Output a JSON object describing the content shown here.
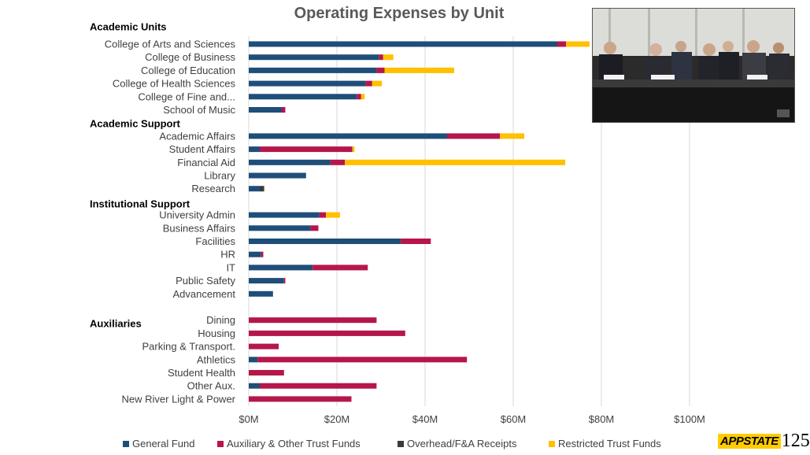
{
  "chart_data": {
    "type": "bar",
    "orientation": "horizontal",
    "stacked": true,
    "title": "Operating Expenses by Unit",
    "xlim": [
      0,
      100
    ],
    "x_ticks": [
      "$0M",
      "$20M",
      "$40M",
      "$60M",
      "$80M",
      "$100M"
    ],
    "x_tick_values": [
      0,
      20,
      40,
      60,
      80,
      100
    ],
    "grid": true,
    "legend_position": "bottom",
    "groups": [
      {
        "label": "Academic Units",
        "categories": [
          "College of Arts and Sciences",
          "College of Business",
          "College of Education",
          "College of Health Sciences",
          "College of Fine and...",
          "School of Music"
        ]
      },
      {
        "label": "Academic Support",
        "categories": [
          "Academic Affairs",
          "Student Affairs",
          "Financial Aid",
          "Library",
          "Research"
        ]
      },
      {
        "label": "Institutional Support",
        "categories": [
          "University Admin",
          "Business Affairs",
          "Facilities",
          "HR",
          "IT",
          "Public Safety",
          "Advancement"
        ]
      },
      {
        "label": "Auxiliaries",
        "categories": [
          "Dining",
          "Housing",
          "Parking & Transport.",
          "Athletics",
          "Student Health",
          "Other Aux.",
          "New River Light & Power"
        ]
      }
    ],
    "categories": [
      "College of Arts and Sciences",
      "College of Business",
      "College of Education",
      "College of Health Sciences",
      "College of Fine and...",
      "School of Music",
      "Academic Affairs",
      "Student Affairs",
      "Financial Aid",
      "Library",
      "Research",
      "University Admin",
      "Business Affairs",
      "Facilities",
      "HR",
      "IT",
      "Public Safety",
      "Advancement",
      "Dining",
      "Housing",
      "Parking & Transport.",
      "Athletics",
      "Student Health",
      "Other Aux.",
      "New River Light & Power"
    ],
    "series": [
      {
        "name": "General Fund",
        "color": "#1f4e79",
        "values": [
          70,
          29.5,
          29,
          26.5,
          24.5,
          7.5,
          45,
          2.5,
          18.5,
          13,
          2.5,
          16,
          14,
          34.5,
          2.8,
          14.5,
          8,
          5.5,
          0,
          0,
          0,
          2,
          0,
          2.5,
          0
        ]
      },
      {
        "name": "Auxiliary & Other Trust Funds",
        "color": "#b5174b",
        "values": [
          2,
          1,
          1.8,
          1.5,
          1,
          0.8,
          12,
          21,
          3.3,
          0,
          0,
          1.5,
          1.8,
          6.8,
          0.5,
          12.5,
          0.3,
          0,
          29,
          35.5,
          6.8,
          47.5,
          8,
          26.5,
          23.3
        ]
      },
      {
        "name": "Overhead/F&A Receipts",
        "color": "#3a3a3a",
        "values": [
          0,
          0,
          0,
          0,
          0,
          0,
          0,
          0,
          0,
          0,
          1,
          0,
          0,
          0,
          0,
          0,
          0,
          0,
          0,
          0,
          0,
          0,
          0,
          0,
          0
        ]
      },
      {
        "name": "Restricted Trust Funds",
        "color": "#ffc000",
        "values": [
          5.3,
          2.3,
          15.8,
          2.2,
          0.8,
          0,
          5.5,
          0.5,
          50,
          0,
          0,
          3.2,
          0,
          0,
          0,
          0,
          0,
          0,
          0,
          0,
          0,
          0,
          0,
          0,
          0
        ]
      }
    ]
  },
  "logo": {
    "brand": "APPSTATE",
    "number": "125"
  },
  "video_overlay": {
    "icon": "video-feed-icon"
  }
}
